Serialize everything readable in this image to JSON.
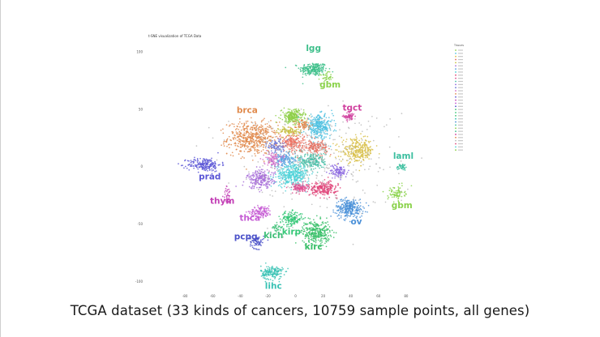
{
  "caption": "TCGA dataset (33 kinds of cancers, 10759 sample points, all genes)",
  "chart_data": {
    "type": "scatter",
    "title": "t-SNE visualization of TCGA Data",
    "legend_title": "Tissues",
    "legend_position": "right",
    "xlabel": "",
    "ylabel": "",
    "xlim": [
      -110,
      110
    ],
    "ylim": [
      -110,
      110
    ],
    "x_ticks": [
      "-80",
      "-60",
      "-40",
      "-20",
      "0",
      "20",
      "40",
      "60",
      "80"
    ],
    "y_ticks": [
      "100",
      "50",
      "0",
      "-50",
      "-100"
    ],
    "total_points": 10759,
    "num_classes": 33,
    "clusters": [
      {
        "label": "lgg",
        "color": "#3dbf8a",
        "cx": 13,
        "cy": 85,
        "sx": 5,
        "sy": 3,
        "n": 220,
        "lx": 13,
        "ly": 101
      },
      {
        "label": "gbm",
        "color": "#8ad24a",
        "cx": 22,
        "cy": 78,
        "sx": 2,
        "sy": 2,
        "n": 40,
        "lx": 25,
        "ly": 69
      },
      {
        "label": "tgct",
        "color": "#d0409e",
        "cx": 39,
        "cy": 44,
        "sx": 2,
        "sy": 2,
        "n": 60,
        "lx": 41,
        "ly": 49
      },
      {
        "label": "brca",
        "color": "#e08a4c",
        "cx": -31,
        "cy": 25,
        "sx": 9,
        "sy": 7,
        "n": 520,
        "lx": -35,
        "ly": 47
      },
      {
        "label": "prad",
        "color": "#5a56d6",
        "cx": -66,
        "cy": 2,
        "sx": 6,
        "sy": 3,
        "n": 200,
        "lx": -62,
        "ly": -11
      },
      {
        "label": "thym",
        "color": "#c340b6",
        "cx": -49,
        "cy": -25,
        "sx": 1.5,
        "sy": 4,
        "n": 35,
        "lx": -53,
        "ly": -32
      },
      {
        "label": "thca",
        "color": "#c55bd4",
        "cx": -25,
        "cy": -39,
        "sx": 4,
        "sy": 2.5,
        "n": 120,
        "lx": -33,
        "ly": -47
      },
      {
        "label": "pcpg",
        "color": "#4a50c8",
        "cx": -28,
        "cy": -65,
        "sx": 2.5,
        "sy": 3,
        "n": 70,
        "lx": -36,
        "ly": -63
      },
      {
        "label": "kich",
        "color": "#3fbf78",
        "cx": -13,
        "cy": -53,
        "sx": 2,
        "sy": 2,
        "n": 35,
        "lx": -16,
        "ly": -62
      },
      {
        "label": "kirp",
        "color": "#36c878",
        "cx": -3,
        "cy": -45,
        "sx": 4,
        "sy": 3,
        "n": 170,
        "lx": -3,
        "ly": -59
      },
      {
        "label": "kirc",
        "color": "#38bf68",
        "cx": 15,
        "cy": -57,
        "sx": 5,
        "sy": 5,
        "n": 320,
        "lx": 13,
        "ly": -72
      },
      {
        "label": "lihc",
        "color": "#38c2b4",
        "cx": -17,
        "cy": -92,
        "sx": 4,
        "sy": 3,
        "n": 170,
        "lx": -16,
        "ly": -106
      },
      {
        "label": "ov",
        "color": "#4a90d8",
        "cx": 39,
        "cy": -36,
        "sx": 5,
        "sy": 4,
        "n": 280,
        "lx": 44,
        "ly": -50
      },
      {
        "label": "laml",
        "color": "#3dbfa0",
        "cx": 77,
        "cy": 0,
        "sx": 2,
        "sy": 1.5,
        "n": 45,
        "lx": 78,
        "ly": 7
      },
      {
        "label": "gbm",
        "color": "#8ad24a",
        "cx": 73,
        "cy": -23,
        "sx": 3,
        "sy": 3,
        "n": 80,
        "lx": 77,
        "ly": -36
      },
      {
        "label": "",
        "color": "#8fd04a",
        "cx": -2,
        "cy": 44,
        "sx": 4,
        "sy": 3,
        "n": 240,
        "lx": null,
        "ly": null
      },
      {
        "label": "",
        "color": "#4fc1e0",
        "cx": 17,
        "cy": 35,
        "sx": 5,
        "sy": 5,
        "n": 320,
        "lx": null,
        "ly": null
      },
      {
        "label": "",
        "color": "#d8c04a",
        "cx": 45,
        "cy": 14,
        "sx": 6,
        "sy": 5,
        "n": 300,
        "lx": null,
        "ly": null
      },
      {
        "label": "",
        "color": "#e36a5a",
        "cx": 15,
        "cy": 17,
        "sx": 4,
        "sy": 3,
        "n": 140,
        "lx": null,
        "ly": null
      },
      {
        "label": "",
        "color": "#ec6f5e",
        "cx": -2,
        "cy": 21,
        "sx": 5,
        "sy": 4,
        "n": 200,
        "lx": null,
        "ly": null
      },
      {
        "label": "",
        "color": "#c8c040",
        "cx": -4,
        "cy": 31,
        "sx": 4,
        "sy": 2,
        "n": 90,
        "lx": null,
        "ly": null
      },
      {
        "label": "",
        "color": "#a66bd8",
        "cx": -25,
        "cy": -11,
        "sx": 5,
        "sy": 4,
        "n": 220,
        "lx": null,
        "ly": null
      },
      {
        "label": "",
        "color": "#5aa0e0",
        "cx": -8,
        "cy": 6,
        "sx": 4,
        "sy": 3,
        "n": 150,
        "lx": null,
        "ly": null
      },
      {
        "label": "",
        "color": "#4fd2d8",
        "cx": -2,
        "cy": -7,
        "sx": 6,
        "sy": 5,
        "n": 380,
        "lx": null,
        "ly": null
      },
      {
        "label": "",
        "color": "#e0467a",
        "cx": 20,
        "cy": -19,
        "sx": 5,
        "sy": 3,
        "n": 230,
        "lx": null,
        "ly": null
      },
      {
        "label": "",
        "color": "#e05090",
        "cx": 3,
        "cy": -18,
        "sx": 3,
        "sy": 2,
        "n": 110,
        "lx": null,
        "ly": null
      },
      {
        "label": "",
        "color": "#4ac0a8",
        "cx": 12,
        "cy": 5,
        "sx": 5,
        "sy": 4,
        "n": 220,
        "lx": null,
        "ly": null
      },
      {
        "label": "",
        "color": "#8c68e0",
        "cx": 31,
        "cy": -4,
        "sx": 3,
        "sy": 3,
        "n": 110,
        "lx": null,
        "ly": null
      },
      {
        "label": "",
        "color": "#6f7ad8",
        "cx": -14,
        "cy": 18,
        "sx": 3,
        "sy": 3,
        "n": 90,
        "lx": null,
        "ly": null
      },
      {
        "label": "",
        "color": "#d070c8",
        "cx": -17,
        "cy": 7,
        "sx": 3,
        "sy": 3,
        "n": 90,
        "lx": null,
        "ly": null
      },
      {
        "label": "",
        "color": "#e38a4e",
        "cx": 5,
        "cy": 37,
        "sx": 3,
        "sy": 2,
        "n": 70,
        "lx": null,
        "ly": null
      },
      {
        "label": "",
        "color": "#bbbbbb",
        "cx": 12,
        "cy": 8,
        "sx": 30,
        "sy": 22,
        "n": 320,
        "lx": null,
        "ly": null
      }
    ],
    "legend_colors": [
      "#8fd04a",
      "#4fc1e0",
      "#d8c04a",
      "#e36a5a",
      "#c8c040",
      "#a66bd8",
      "#5aa0e0",
      "#4fd2d8",
      "#e0467a",
      "#e05090",
      "#4ac0a8",
      "#8c68e0",
      "#6f7ad8",
      "#d070c8",
      "#e08a4c",
      "#5a56d6",
      "#c340b6",
      "#c55bd4",
      "#4a50c8",
      "#3fbf78",
      "#36c878",
      "#38bf68",
      "#38c2b4",
      "#4a90d8",
      "#3dbfa0",
      "#8ad24a",
      "#3dbf8a",
      "#d0409e",
      "#e38a4e",
      "#bbbbbb",
      "#e0467a",
      "#4fd2d8",
      "#8fd04a"
    ]
  }
}
